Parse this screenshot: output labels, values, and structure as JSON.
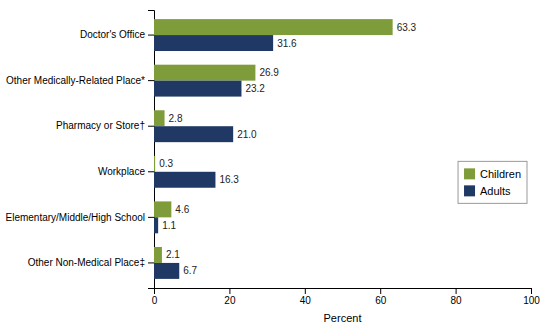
{
  "chart_data": {
    "type": "bar",
    "orientation": "horizontal",
    "categories": [
      "Doctor's Office",
      "Other Medically-Related Place*",
      "Pharmacy or Store†",
      "Workplace",
      "Elementary/Middle/High School",
      "Other Non-Medical Place‡"
    ],
    "series": [
      {
        "name": "Children",
        "color": "#7f9c3a",
        "values": [
          63.3,
          26.9,
          2.8,
          0.3,
          4.6,
          2.1
        ]
      },
      {
        "name": "Adults",
        "color": "#1f3864",
        "values": [
          31.6,
          23.2,
          21.0,
          16.3,
          1.1,
          6.7
        ],
        "value_labels": [
          "31.6",
          "23.2",
          "21.0",
          "16.3",
          "1.1",
          "6.7"
        ]
      }
    ],
    "xlabel": "Percent",
    "xlim": [
      0,
      100
    ],
    "xticks": [
      0,
      20,
      40,
      60,
      80,
      100
    ],
    "data_labels": true,
    "legend": "right",
    "grid": false
  }
}
